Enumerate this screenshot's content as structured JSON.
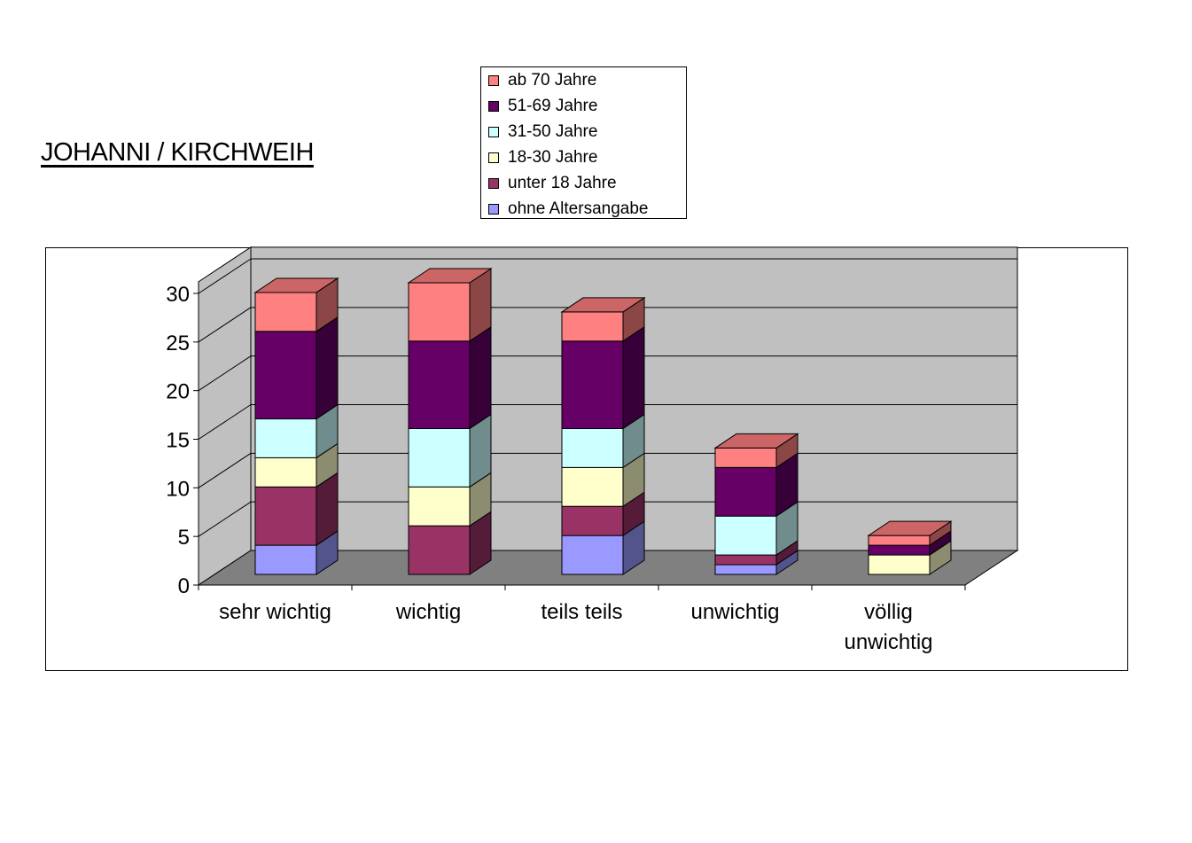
{
  "title": "JOHANNI / KIRCHWEIH",
  "chart_data": {
    "type": "bar",
    "stacked": true,
    "categories": [
      "sehr wichtig",
      "wichtig",
      "teils teils",
      "unwichtig",
      "völlig unwichtig"
    ],
    "category_lines": [
      [
        "sehr wichtig"
      ],
      [
        "wichtig"
      ],
      [
        "teils teils"
      ],
      [
        "unwichtig"
      ],
      [
        "völlig",
        "unwichtig"
      ]
    ],
    "series": [
      {
        "name": "ohne Altersangabe",
        "color": "#9999ff",
        "values": [
          3,
          0,
          4,
          1,
          0
        ]
      },
      {
        "name": "unter 18 Jahre",
        "color": "#993366",
        "values": [
          6,
          5,
          3,
          1,
          0
        ]
      },
      {
        "name": "18-30 Jahre",
        "color": "#ffffcc",
        "values": [
          3,
          4,
          4,
          0,
          2
        ]
      },
      {
        "name": "31-50 Jahre",
        "color": "#ccffff",
        "values": [
          4,
          6,
          4,
          4,
          0
        ]
      },
      {
        "name": "51-69 Jahre",
        "color": "#660066",
        "values": [
          9,
          9,
          9,
          5,
          1
        ]
      },
      {
        "name": "ab 70 Jahre",
        "color": "#ff8080",
        "values": [
          4,
          6,
          3,
          2,
          1
        ]
      }
    ],
    "legend_order": [
      "ab 70 Jahre",
      "51-69 Jahre",
      "31-50 Jahre",
      "18-30 Jahre",
      "unter 18 Jahre",
      "ohne Altersangabe"
    ],
    "ylim": [
      0,
      30
    ],
    "yticks": [
      0,
      5,
      10,
      15,
      20,
      25,
      30
    ],
    "grid": true,
    "legend_position": "top-center",
    "three_d": true,
    "wall_color": "#c0c0c0",
    "floor_color": "#808080"
  }
}
